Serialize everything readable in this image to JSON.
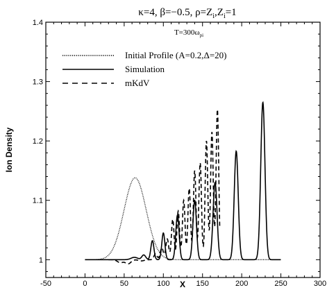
{
  "chart_data": {
    "type": "line",
    "title": "κ=4, β=−0.5, ρ=Z",
    "title_sub1": "i",
    "title_mid": ",Z",
    "title_sub2": "i",
    "title_end": "=1",
    "annotation_main": "T=300ω",
    "annotation_sub": "pi",
    "xlabel": "X",
    "ylabel": "Ion Density",
    "xlim": [
      -50,
      300
    ],
    "ylim": [
      0.97,
      1.4
    ],
    "x_ticks": [
      -50,
      0,
      50,
      100,
      150,
      200,
      250,
      300
    ],
    "x_tick_labels": [
      "-50",
      "0",
      "50",
      "100",
      "150",
      "200",
      "250",
      "300"
    ],
    "y_ticks": [
      1.0,
      1.1,
      1.2,
      1.3,
      1.4
    ],
    "y_tick_labels": [
      "1",
      "1.1",
      "1.2",
      "1.3",
      "1.4"
    ],
    "grid": false,
    "legend_position": "upper-left",
    "series": [
      {
        "name": "Initial Profile (A=0.2,Δ=20)",
        "style": "dotted",
        "color": "#000000",
        "model": {
          "baseline": 1.0,
          "amplitude": 0.138,
          "center": 64,
          "width": 20,
          "x_start": 0,
          "x_end": 250
        }
      },
      {
        "name": "Simulation",
        "style": "solid",
        "color": "#000000",
        "peaks": [
          {
            "x": 63,
            "y": 1.004,
            "w": 6
          },
          {
            "x": 75,
            "y": 1.008,
            "w": 3.5
          },
          {
            "x": 86,
            "y": 1.032,
            "w": 2.8
          },
          {
            "x": 100,
            "y": 1.045,
            "w": 2.8
          },
          {
            "x": 118,
            "y": 1.075,
            "w": 3
          },
          {
            "x": 140,
            "y": 1.1,
            "w": 3.2
          },
          {
            "x": 166,
            "y": 1.13,
            "w": 3.6
          },
          {
            "x": 193,
            "y": 1.183,
            "w": 3.6
          },
          {
            "x": 227,
            "y": 1.265,
            "w": 3.8
          }
        ],
        "x_start": 0,
        "x_end": 250
      },
      {
        "name": "mKdV",
        "style": "dashed",
        "color": "#000000",
        "peaks": [
          {
            "x": 45,
            "y": 0.995,
            "w": 5
          },
          {
            "x": 55,
            "y": 0.993,
            "w": 5
          },
          {
            "x": 72,
            "y": 0.998,
            "w": 5
          },
          {
            "x": 90,
            "y": 1.01,
            "w": 2.8
          },
          {
            "x": 98,
            "y": 1.02,
            "w": 2.8
          },
          {
            "x": 105,
            "y": 1.035,
            "w": 2.6
          },
          {
            "x": 112,
            "y": 1.068,
            "w": 2.4
          },
          {
            "x": 119,
            "y": 1.082,
            "w": 2.4
          },
          {
            "x": 126,
            "y": 1.1,
            "w": 2.4
          },
          {
            "x": 133,
            "y": 1.12,
            "w": 2.4
          },
          {
            "x": 140,
            "y": 1.15,
            "w": 2.4
          },
          {
            "x": 147,
            "y": 1.163,
            "w": 2.4
          },
          {
            "x": 155,
            "y": 1.2,
            "w": 2.4
          },
          {
            "x": 162,
            "y": 1.215,
            "w": 2.4
          },
          {
            "x": 169,
            "y": 1.253,
            "w": 2.4
          }
        ],
        "x_start": 30,
        "x_end": 172
      }
    ]
  }
}
